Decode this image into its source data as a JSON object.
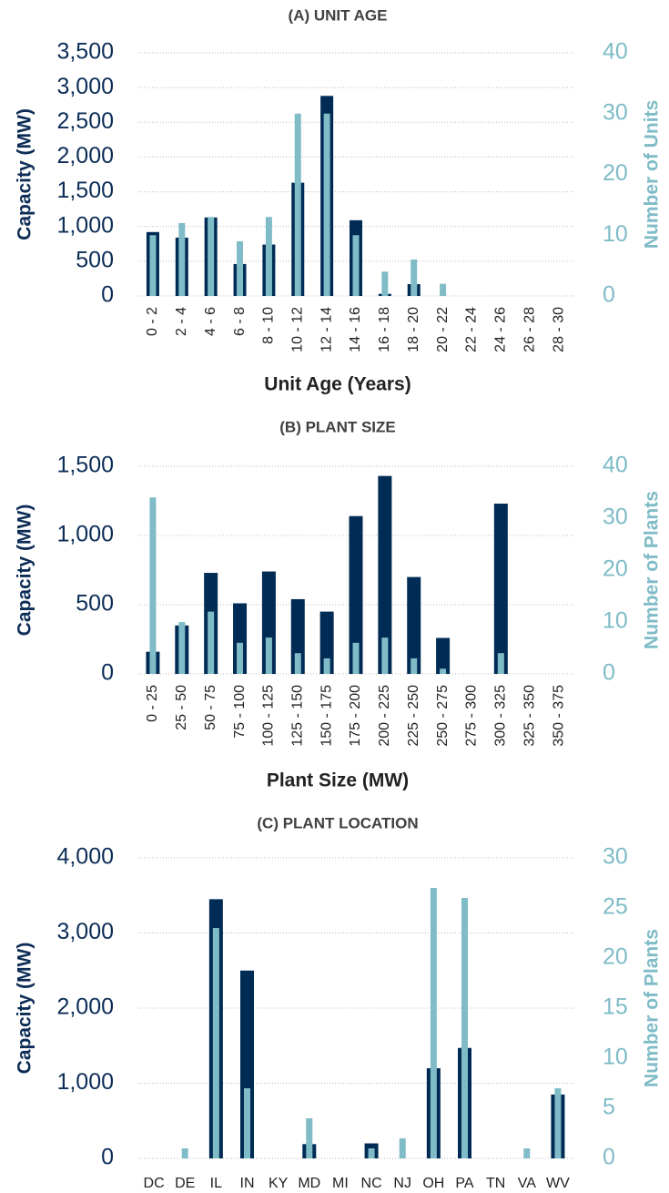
{
  "chart_data": [
    {
      "type": "bar",
      "title": "(A) UNIT AGE",
      "x_label": "Unit Age (Years)",
      "y_label": "Capacity (MW)",
      "y2_label": "Number of Units",
      "categories": [
        "0 - 2",
        "2 - 4",
        "4 - 6",
        "6 - 8",
        "8 - 10",
        "10 - 12",
        "12 - 14",
        "14 - 16",
        "16 - 18",
        "18 - 20",
        "20 - 22",
        "22 - 24",
        "24 - 26",
        "26 - 28",
        "28 - 30"
      ],
      "series": [
        {
          "color": "#002b55",
          "values": [
            920,
            840,
            1130,
            460,
            740,
            1630,
            2880,
            1090,
            30,
            170,
            0,
            0,
            0,
            0,
            0
          ]
        },
        {
          "color": "#7fbcc7",
          "axis": "y2",
          "values": [
            10,
            12,
            13,
            9,
            13,
            30,
            30,
            10,
            4,
            6,
            2,
            0,
            0,
            0,
            0
          ]
        }
      ],
      "ylim": [
        0,
        3500
      ],
      "yticks": [
        0,
        500,
        {
          "value": 1000,
          "label": "1,000"
        },
        {
          "value": 1500,
          "label": "1,500"
        },
        {
          "value": 2000,
          "label": "2,000"
        },
        {
          "value": 2500,
          "label": "2,500"
        },
        {
          "value": 3000,
          "label": "3,000"
        },
        {
          "value": 3500,
          "label": "3,500"
        }
      ],
      "y2lim": [
        0,
        40
      ],
      "y2ticks": [
        0,
        10,
        20,
        30,
        40
      ],
      "grid": true
    },
    {
      "type": "bar",
      "title": "(B) PLANT SIZE",
      "x_label": "Plant Size (MW)",
      "y_label": "Capacity (MW)",
      "y2_label": "Number of Plants",
      "categories": [
        "0 - 25",
        "25 - 50",
        "50 - 75",
        "75 - 100",
        "100 - 125",
        "125 - 150",
        "150 - 175",
        "175 - 200",
        "200 - 225",
        "225 - 250",
        "250 - 275",
        "275 - 300",
        "300 - 325",
        "325 - 350",
        "350 - 375"
      ],
      "series": [
        {
          "color": "#002b55",
          "values": [
            160,
            350,
            730,
            510,
            740,
            540,
            450,
            1140,
            1430,
            700,
            260,
            0,
            1230,
            0,
            0
          ]
        },
        {
          "color": "#7fbcc7",
          "axis": "y2",
          "values": [
            34,
            10,
            12,
            6,
            7,
            4,
            3,
            6,
            7,
            3,
            1,
            0,
            4,
            0,
            0
          ]
        }
      ],
      "ylim": [
        0,
        1500
      ],
      "yticks": [
        0,
        500,
        {
          "value": 1000,
          "label": "1,000"
        },
        {
          "value": 1500,
          "label": "1,500"
        }
      ],
      "y2lim": [
        0,
        40
      ],
      "y2ticks": [
        0,
        10,
        20,
        30,
        40
      ],
      "grid": true
    },
    {
      "type": "bar",
      "title": "(C) PLANT LOCATION",
      "y_label": "Capacity (MW)",
      "y2_label": "Number of Plants",
      "categories": [
        "DC",
        "DE",
        "IL",
        "IN",
        "KY",
        "MD",
        "MI",
        "NC",
        "NJ",
        "OH",
        "PA",
        "TN",
        "VA",
        "WV"
      ],
      "series": [
        {
          "color": "#002b55",
          "values": [
            0,
            0,
            3450,
            2500,
            0,
            190,
            0,
            200,
            0,
            1200,
            1470,
            0,
            0,
            850
          ]
        },
        {
          "color": "#7fbcc7",
          "axis": "y2",
          "values": [
            0,
            1,
            23,
            7,
            0,
            4,
            0,
            1,
            2,
            27,
            26,
            0,
            1,
            7
          ]
        }
      ],
      "ylim": [
        0,
        4000
      ],
      "yticks": [
        0,
        {
          "value": 1000,
          "label": "1,000"
        },
        {
          "value": 2000,
          "label": "2,000"
        },
        {
          "value": 3000,
          "label": "3,000"
        },
        {
          "value": 4000,
          "label": "4,000"
        }
      ],
      "y2lim": [
        0,
        30
      ],
      "y2ticks": [
        0,
        5,
        10,
        15,
        20,
        25,
        30
      ],
      "grid": true
    }
  ]
}
